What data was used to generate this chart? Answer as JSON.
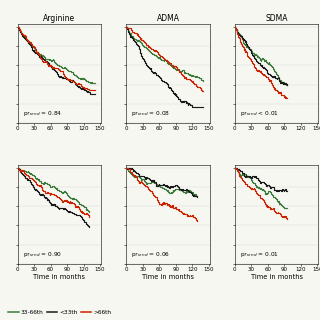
{
  "titles": [
    "Arginine",
    "ADMA",
    "SDMA"
  ],
  "p_texts_top": [
    "p$_{Trend}$ = 0.84",
    "p$_{Trend}$ = 0.08",
    "p$_{Trend}$ < 0.01"
  ],
  "p_texts_bot": [
    "p$_{Trend}$ = 0.90",
    "p$_{Trend}$ = 0.06",
    "p$_{Trend}$ = 0.01"
  ],
  "colors": {
    "mid": "#3a7a3a",
    "low": "#1a1a1a",
    "high": "#cc2200"
  },
  "legend_labels": [
    "33-66th",
    "<33th",
    ">66th"
  ],
  "xlabel": "Time in months",
  "xticks": [
    0,
    30,
    60,
    90,
    120,
    150
  ],
  "xlim": [
    0,
    152
  ],
  "ylim": [
    0.0,
    1.03
  ],
  "background_color": "#f7f7f2",
  "panels_top": [
    {
      "mid": [
        1.0,
        0.37,
        140
      ],
      "low": [
        1.0,
        0.35,
        140
      ],
      "high": [
        1.0,
        0.39,
        140
      ]
    },
    {
      "mid": [
        1.0,
        0.42,
        140
      ],
      "low": [
        1.0,
        0.22,
        140
      ],
      "high": [
        1.0,
        0.38,
        140
      ]
    },
    {
      "mid": [
        1.0,
        0.4,
        95
      ],
      "low": [
        1.0,
        0.39,
        95
      ],
      "high": [
        1.0,
        0.24,
        95
      ]
    }
  ],
  "panels_bot": [
    {
      "mid": [
        1.0,
        0.56,
        130
      ],
      "low": [
        1.0,
        0.43,
        130
      ],
      "high": [
        1.0,
        0.49,
        130
      ]
    },
    {
      "mid": [
        1.0,
        0.65,
        128
      ],
      "low": [
        1.0,
        0.64,
        128
      ],
      "high": [
        1.0,
        0.33,
        128
      ]
    },
    {
      "mid": [
        1.0,
        0.63,
        95
      ],
      "low": [
        1.0,
        0.64,
        95
      ],
      "high": [
        1.0,
        0.47,
        95
      ]
    }
  ]
}
